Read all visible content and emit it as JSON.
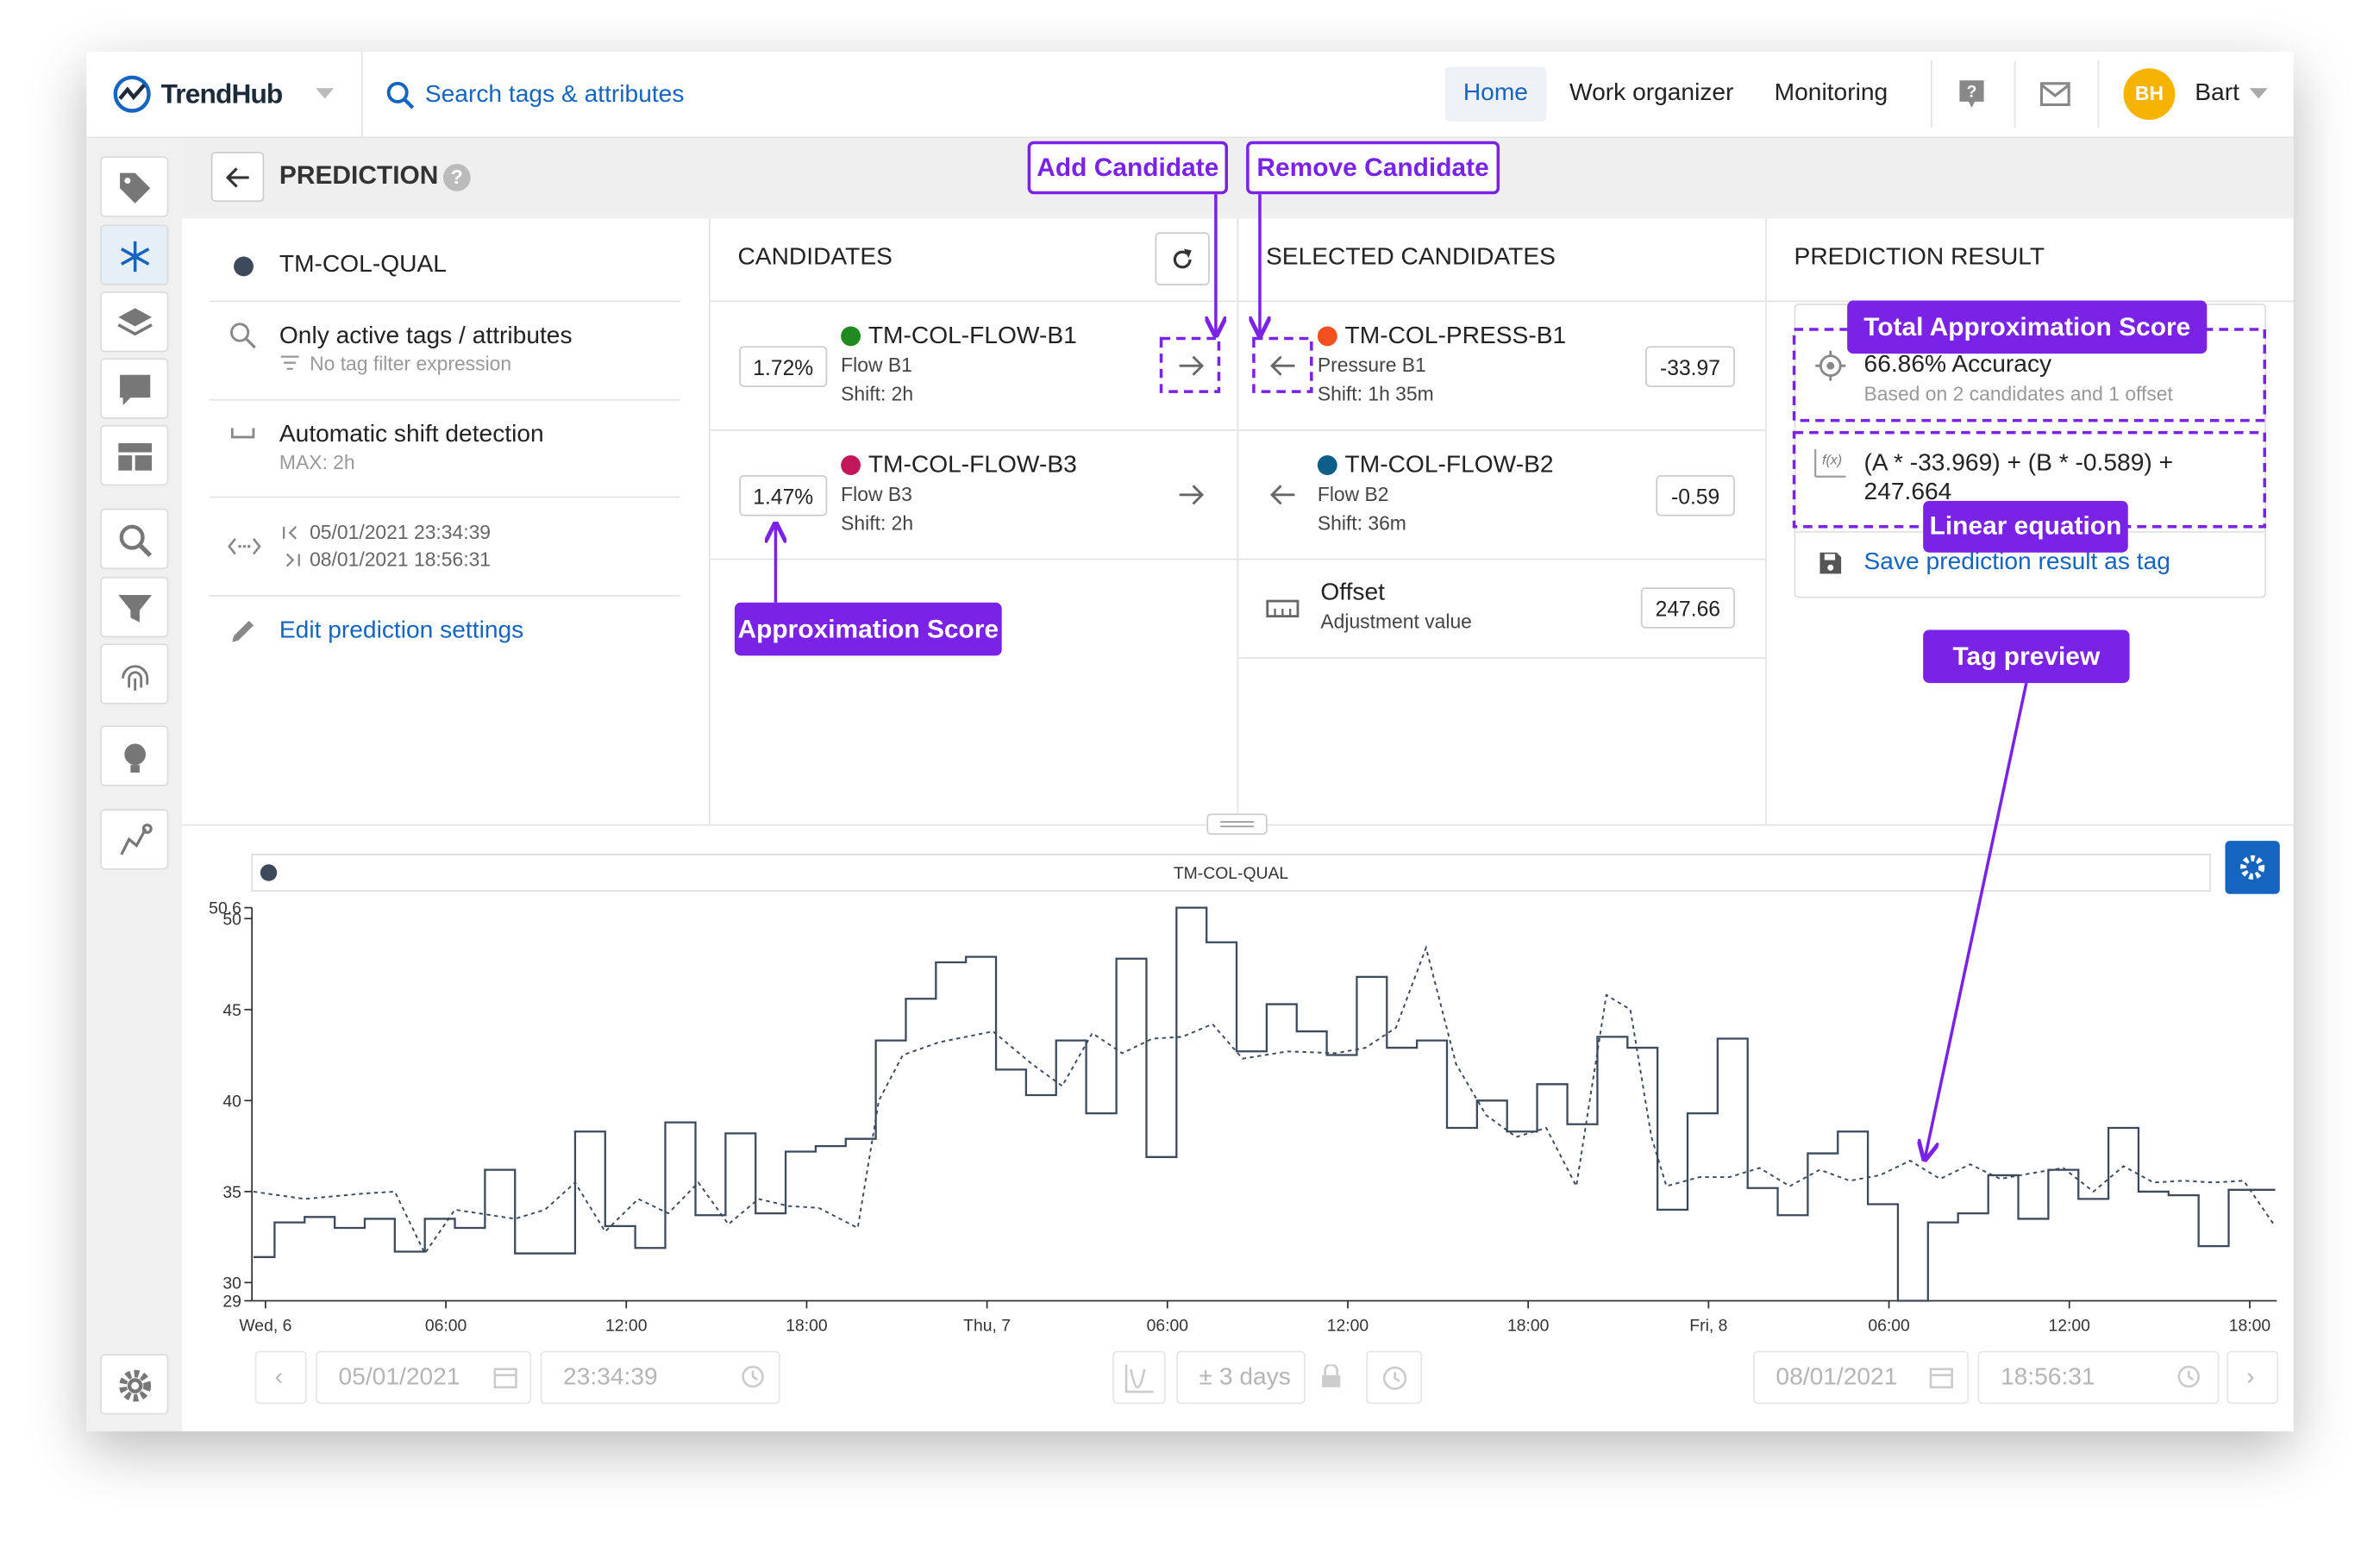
{
  "topbar": {
    "brand": "TrendHub",
    "search": "Search tags & attributes",
    "nav": [
      "Home",
      "Work organizer",
      "Monitoring"
    ],
    "avatar": "BH",
    "user": "Bart"
  },
  "page": {
    "title": "PREDICTION"
  },
  "settings": {
    "tag": "TM-COL-QUAL",
    "filter": {
      "label": "Only active tags / attributes",
      "sub": "No tag filter expression"
    },
    "shift": {
      "label": "Automatic shift detection",
      "sub": "MAX: 2h"
    },
    "range": {
      "start": "05/01/2021 23:34:39",
      "end": "08/01/2021 18:56:31"
    },
    "edit": "Edit prediction settings"
  },
  "candidates": {
    "title": "CANDIDATES",
    "items": [
      {
        "score": "1.72%",
        "name": "TM-COL-FLOW-B1",
        "desc": "Flow B1",
        "shift": "Shift: 2h",
        "color": "#1f8a1f"
      },
      {
        "score": "1.47%",
        "name": "TM-COL-FLOW-B3",
        "desc": "Flow B3",
        "shift": "Shift: 2h",
        "color": "#c2185b"
      }
    ]
  },
  "selected": {
    "title": "SELECTED CANDIDATES",
    "items": [
      {
        "name": "TM-COL-PRESS-B1",
        "desc": "Pressure B1",
        "shift": "Shift: 1h 35m",
        "coefficient": "-33.97",
        "color": "#f4511e"
      },
      {
        "name": "TM-COL-FLOW-B2",
        "desc": "Flow B2",
        "shift": "Shift: 36m",
        "coefficient": "-0.59",
        "color": "#0d5f8a"
      }
    ],
    "offset": {
      "label": "Offset",
      "sub": "Adjustment value",
      "value": "247.66"
    }
  },
  "result": {
    "title": "PREDICTION RESULT",
    "accuracy": "66.86% Accuracy",
    "basis": "Based on 2 candidates and 1 offset",
    "equation": "(A * -33.969) + (B * -0.589) + 247.664",
    "save": "Save prediction result as tag"
  },
  "chart_data": {
    "type": "line",
    "series": [
      {
        "name": "TM-COL-QUAL",
        "color": "#3d4a5c",
        "step": true,
        "x": [
          -0.4,
          0.3,
          1.3,
          2.3,
          3.3,
          4.3,
          5.3,
          6.3,
          7.3,
          8.3,
          9.3,
          10.3,
          11.3,
          12.3,
          13.3,
          14.3,
          15.3,
          16.3,
          17.3,
          18.3,
          19.3,
          20.3,
          21.3,
          22.3,
          23.3,
          24.3,
          25.3,
          26.3,
          27.3,
          28.3,
          29.3,
          30.3,
          31.3,
          32.3,
          33.3,
          34.3,
          35.3,
          36.3,
          37.3,
          38.3,
          39.3,
          40.3,
          41.3,
          42.3,
          43.3,
          44.3,
          45.3,
          46.3,
          47.3,
          48.3,
          49.3,
          50.3,
          51.3,
          52.3,
          53.3,
          54.3,
          55.3,
          56.3,
          57.3,
          58.3,
          59.3,
          60.3,
          61.3,
          62.3,
          63.3,
          64.3,
          65.3
        ],
        "values": [
          31.4,
          33.3,
          33.6,
          33,
          33.5,
          31.7,
          33.5,
          33,
          36.2,
          31.6,
          31.6,
          38.3,
          33.1,
          31.9,
          38.8,
          33.7,
          38.2,
          33.8,
          37.2,
          37.5,
          37.9,
          43.3,
          45.6,
          47.6,
          47.9,
          41.7,
          40.3,
          43.3,
          39.3,
          47.8,
          36.9,
          50.6,
          48.7,
          42.7,
          45.3,
          43.8,
          42.5,
          46.8,
          42.9,
          43.3,
          38.5,
          40,
          38.3,
          40.9,
          38.7,
          43.5,
          42.9,
          34,
          39.3,
          43.4,
          35.2,
          33.7,
          37.1,
          38.3,
          34.3,
          29,
          33.3,
          33.8,
          35.9,
          33.5,
          36.2,
          34.6,
          38.5,
          35,
          34.8,
          32,
          35.1
        ]
      },
      {
        "color": "#3d4a5c",
        "dashed": true,
        "x": [
          -0.4,
          1.3,
          3.3,
          4.3,
          5.3,
          6.3,
          8.3,
          9.3,
          10.3,
          11.3,
          12.4,
          13.4,
          14.4,
          15.4,
          16.4,
          17.4,
          18.4,
          19.7,
          20.4,
          21.2,
          22.4,
          24.2,
          25.5,
          26.5,
          27.5,
          28.5,
          29.5,
          30.5,
          31.5,
          32.5,
          34,
          35.6,
          36.6,
          37.6,
          38.6,
          39.6,
          40.6,
          41.6,
          42.6,
          43.6,
          44.6,
          45.4,
          46.1,
          46.6,
          47.7,
          48.7,
          49.7,
          50.7,
          51.7,
          52.7,
          53.7,
          54.7,
          55.7,
          56.7,
          57.7,
          58.7,
          59.8,
          60.8,
          61.8,
          62.8,
          63.8,
          64.8,
          65.8,
          66.8
        ],
        "values": [
          35,
          34.6,
          34.9,
          35,
          31.6,
          34,
          33.5,
          34,
          35.5,
          32.8,
          34.6,
          33.8,
          35.5,
          33.2,
          34.6,
          34.2,
          34.1,
          33,
          40,
          42.5,
          43.2,
          43.8,
          42,
          40.8,
          43.7,
          42.6,
          43.4,
          43.5,
          44.2,
          42.3,
          42.7,
          42.6,
          42.9,
          44,
          48.4,
          42,
          39.2,
          38,
          38.5,
          35.3,
          45.8,
          45,
          38,
          35.3,
          35.8,
          35.8,
          36.3,
          35.3,
          36.2,
          35.6,
          35.9,
          36.7,
          35.7,
          36.5,
          35.7,
          36,
          36.3,
          35,
          36.4,
          35.5,
          35.6,
          35.5,
          35.6,
          33.2
        ]
      }
    ],
    "xlim": [
      -0.45,
      66.9
    ],
    "xticks": [
      {
        "value": 0,
        "label": "Wed, 6"
      },
      {
        "value": 6,
        "label": "06:00"
      },
      {
        "value": 12,
        "label": "12:00"
      },
      {
        "value": 18,
        "label": "18:00"
      },
      {
        "value": 24,
        "label": "Thu, 7"
      },
      {
        "value": 30,
        "label": "06:00"
      },
      {
        "value": 36,
        "label": "12:00"
      },
      {
        "value": 42,
        "label": "18:00"
      },
      {
        "value": 48,
        "label": "Fri, 8"
      },
      {
        "value": 54,
        "label": "06:00"
      },
      {
        "value": 60,
        "label": "12:00"
      },
      {
        "value": 66,
        "label": "18:00"
      }
    ],
    "ylim": [
      29,
      50.6
    ],
    "yticks": [
      29,
      30,
      35,
      40,
      45,
      50,
      50.6
    ]
  },
  "toolbar": {
    "start_date": "05/01/2021",
    "start_time": "23:34:39",
    "span": "± 3 days",
    "end_date": "08/01/2021",
    "end_time": "18:56:31"
  },
  "annotations": {
    "add": "Add Candidate",
    "remove": "Remove Candidate",
    "score": "Approximation Score",
    "total": "Total Approximation Score",
    "equation": "Linear equation",
    "preview": "Tag preview"
  }
}
